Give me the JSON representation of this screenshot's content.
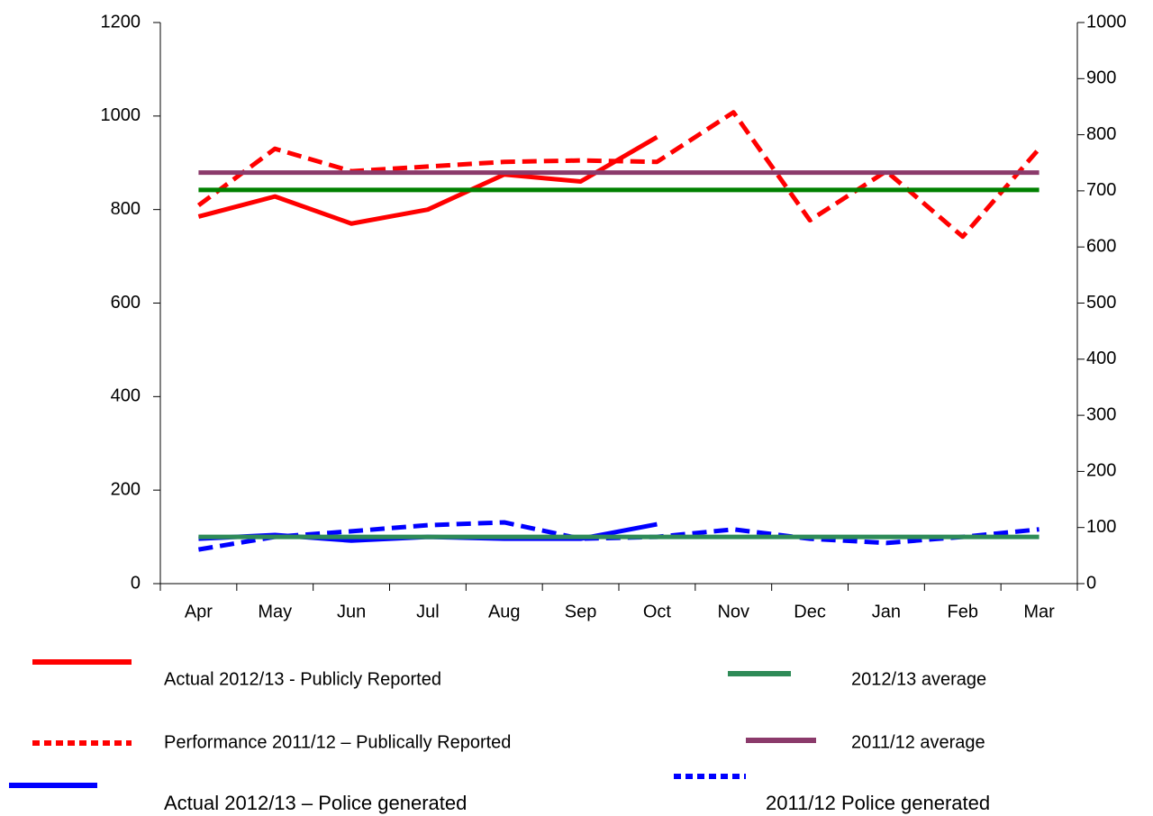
{
  "chart_data": {
    "type": "line",
    "categories": [
      "Apr",
      "May",
      "Jun",
      "Jul",
      "Aug",
      "Sep",
      "Oct",
      "Nov",
      "Dec",
      "Jan",
      "Feb",
      "Mar"
    ],
    "ylim": [
      0,
      1200
    ],
    "yticks": [
      0,
      200,
      400,
      600,
      800,
      1000,
      1200
    ],
    "y2lim": [
      0,
      1000
    ],
    "y2ticks": [
      0,
      100,
      200,
      300,
      400,
      500,
      600,
      700,
      800,
      900,
      1000
    ],
    "series": [
      {
        "name": "Actual 2012/13 - Publicly Reported",
        "color": "#ff0000",
        "dashed": false,
        "values": [
          785,
          828,
          770,
          800,
          875,
          860,
          955,
          null,
          null,
          null,
          null,
          null
        ]
      },
      {
        "name": "Performance 2011/12 – Publically Reported",
        "color": "#ff0000",
        "dashed": true,
        "values": [
          809,
          930,
          882,
          892,
          902,
          905,
          902,
          1008,
          777,
          882,
          742,
          930
        ]
      },
      {
        "name": "Actual 2012/13 – Police generated",
        "color": "#0000ff",
        "dashed": false,
        "values": [
          96,
          104,
          92,
          100,
          96,
          96,
          127,
          null,
          null,
          null,
          null,
          null
        ]
      },
      {
        "name": "2011/12 Police generated",
        "color": "#0000ff",
        "dashed": true,
        "values": [
          73,
          100,
          112,
          125,
          131,
          96,
          100,
          116,
          96,
          87,
          100,
          116
        ]
      },
      {
        "name": "2012/13 average",
        "color": "#2e8b57",
        "dashed": false,
        "values": [
          100,
          100,
          100,
          100,
          100,
          100,
          100,
          100,
          100,
          100,
          100,
          100
        ]
      },
      {
        "color": "#008000",
        "dashed": false,
        "values": [
          842,
          842,
          842,
          842,
          842,
          842,
          842,
          842,
          842,
          842,
          842,
          842
        ]
      },
      {
        "name": "2011/12 average",
        "color": "#8b3a6b",
        "dashed": false,
        "values": [
          879,
          879,
          879,
          879,
          879,
          879,
          879,
          879,
          879,
          879,
          879,
          879
        ]
      }
    ]
  }
}
